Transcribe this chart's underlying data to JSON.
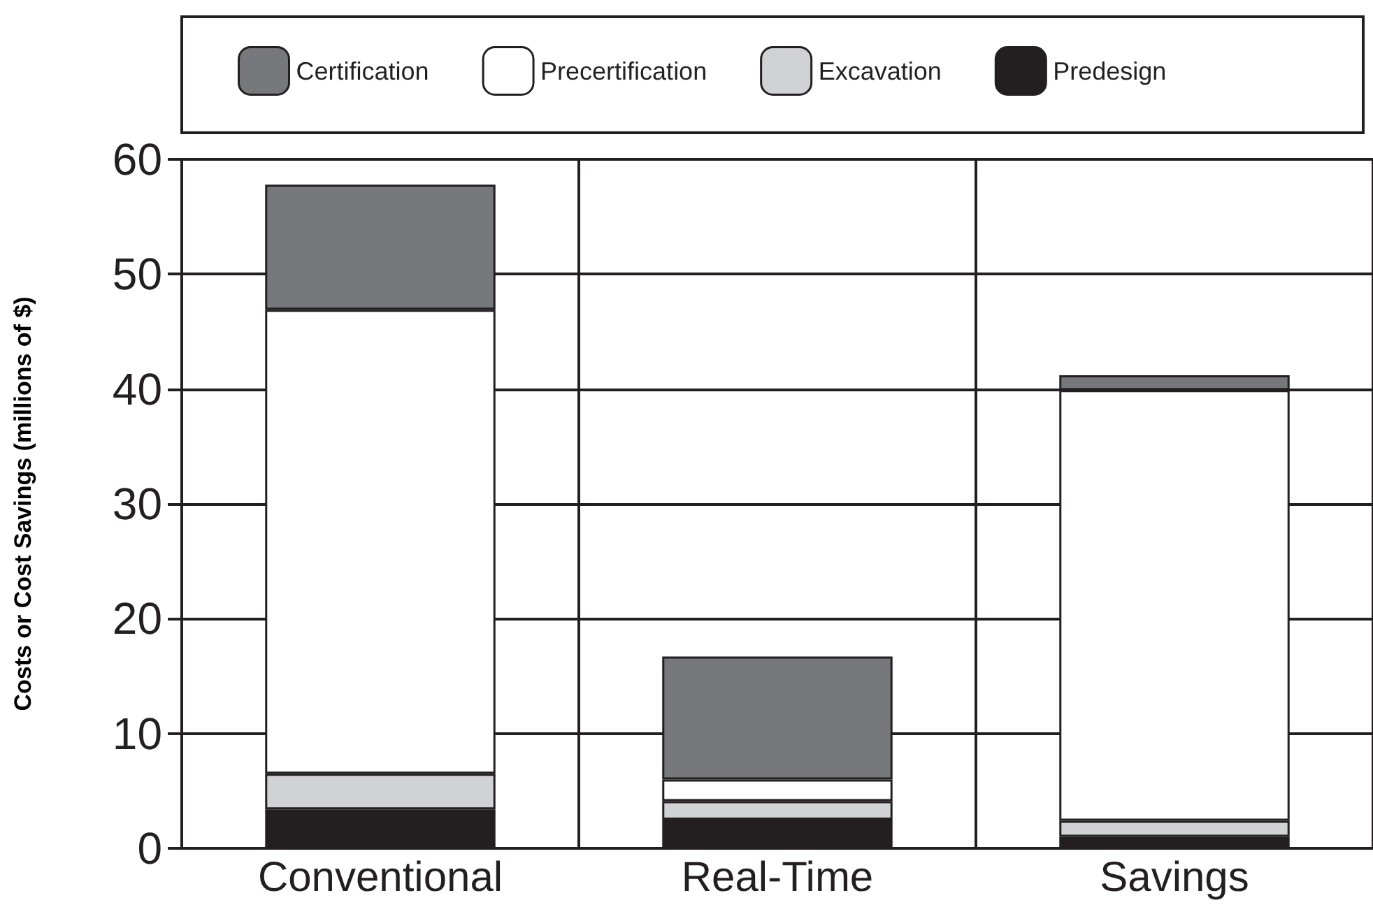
{
  "chart_data": {
    "type": "bar",
    "ylabel": "Costs or Cost Savings (millions of $)",
    "categories": [
      "Conventional",
      "Real-Time",
      "Savings"
    ],
    "stacked": true,
    "series": [
      {
        "name": "Predesign",
        "color": "#231f20",
        "values": [
          3.4,
          2.5,
          1.0
        ]
      },
      {
        "name": "Excavation",
        "color": "#d1d2d4",
        "values": [
          3.1,
          1.6,
          1.4
        ]
      },
      {
        "name": "Precertification",
        "color": "#ffffff",
        "values": [
          40.4,
          1.9,
          37.5
        ]
      },
      {
        "name": "Certification",
        "color": "#77787b",
        "values": [
          10.9,
          10.7,
          1.3
        ]
      }
    ],
    "ylim": [
      0,
      60
    ],
    "yticks": [
      0,
      10,
      20,
      30,
      40,
      50,
      60
    ],
    "grid": true,
    "legend": "top"
  }
}
